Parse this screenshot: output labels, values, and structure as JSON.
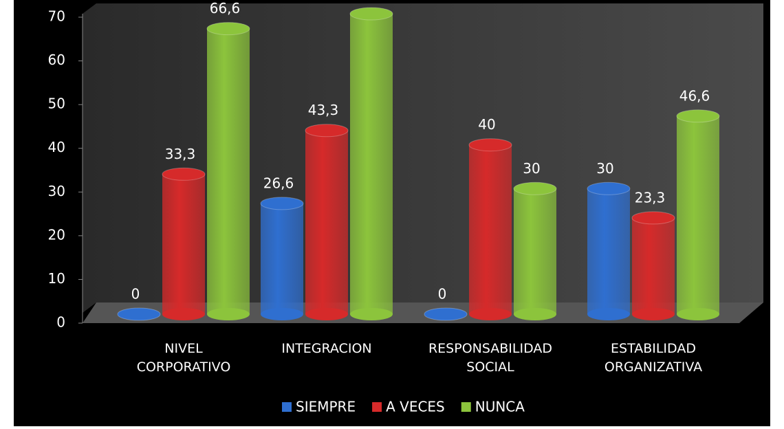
{
  "chart_data": {
    "type": "bar",
    "categories": [
      "NIVEL CORPORATIVO",
      "INTEGRACION",
      "RESPONSABILIDAD SOCIAL",
      "ESTABILIDAD ORGANIZATIVA"
    ],
    "series": [
      {
        "name": "SIEMPRE",
        "color": "#2f6fd0",
        "values": [
          0,
          26.6,
          0,
          30
        ],
        "value_labels": [
          "0",
          "26,6",
          "0",
          "30"
        ]
      },
      {
        "name": "A VECES",
        "color": "#d62a2a",
        "values": [
          33.3,
          43.3,
          40,
          23.3
        ],
        "value_labels": [
          "33,3",
          "43,3",
          "40",
          "23,3"
        ]
      },
      {
        "name": "NUNCA",
        "color": "#8cc43c",
        "values": [
          66.6,
          70,
          30,
          46.6
        ],
        "value_labels": [
          "66,6",
          null,
          "30",
          "46,6"
        ]
      }
    ],
    "ylim": [
      0,
      70
    ],
    "yticks": [
      0,
      10,
      20,
      30,
      40,
      50,
      60,
      70
    ]
  }
}
